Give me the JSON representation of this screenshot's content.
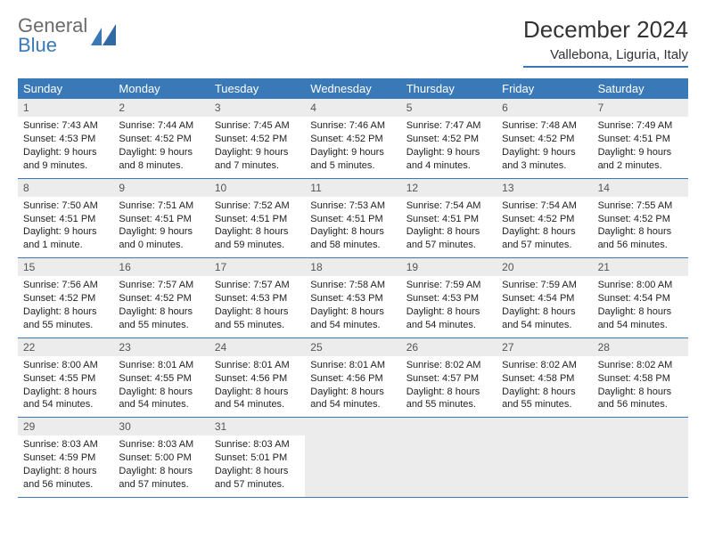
{
  "logo": {
    "text1": "General",
    "text2": "Blue"
  },
  "title": "December 2024",
  "location": "Vallebona, Liguria, Italy",
  "colors": {
    "header_bg": "#3a79b7",
    "header_text": "#ffffff",
    "daynum_bg": "#ececec",
    "daynum_text": "#555555",
    "body_text": "#222222",
    "rule": "#3a79b7"
  },
  "calendar": {
    "columns": [
      "Sunday",
      "Monday",
      "Tuesday",
      "Wednesday",
      "Thursday",
      "Friday",
      "Saturday"
    ],
    "weeks": [
      [
        {
          "day": "1",
          "sunrise": "7:43 AM",
          "sunset": "4:53 PM",
          "daylight": "9 hours and 9 minutes."
        },
        {
          "day": "2",
          "sunrise": "7:44 AM",
          "sunset": "4:52 PM",
          "daylight": "9 hours and 8 minutes."
        },
        {
          "day": "3",
          "sunrise": "7:45 AM",
          "sunset": "4:52 PM",
          "daylight": "9 hours and 7 minutes."
        },
        {
          "day": "4",
          "sunrise": "7:46 AM",
          "sunset": "4:52 PM",
          "daylight": "9 hours and 5 minutes."
        },
        {
          "day": "5",
          "sunrise": "7:47 AM",
          "sunset": "4:52 PM",
          "daylight": "9 hours and 4 minutes."
        },
        {
          "day": "6",
          "sunrise": "7:48 AM",
          "sunset": "4:52 PM",
          "daylight": "9 hours and 3 minutes."
        },
        {
          "day": "7",
          "sunrise": "7:49 AM",
          "sunset": "4:51 PM",
          "daylight": "9 hours and 2 minutes."
        }
      ],
      [
        {
          "day": "8",
          "sunrise": "7:50 AM",
          "sunset": "4:51 PM",
          "daylight": "9 hours and 1 minute."
        },
        {
          "day": "9",
          "sunrise": "7:51 AM",
          "sunset": "4:51 PM",
          "daylight": "9 hours and 0 minutes."
        },
        {
          "day": "10",
          "sunrise": "7:52 AM",
          "sunset": "4:51 PM",
          "daylight": "8 hours and 59 minutes."
        },
        {
          "day": "11",
          "sunrise": "7:53 AM",
          "sunset": "4:51 PM",
          "daylight": "8 hours and 58 minutes."
        },
        {
          "day": "12",
          "sunrise": "7:54 AM",
          "sunset": "4:51 PM",
          "daylight": "8 hours and 57 minutes."
        },
        {
          "day": "13",
          "sunrise": "7:54 AM",
          "sunset": "4:52 PM",
          "daylight": "8 hours and 57 minutes."
        },
        {
          "day": "14",
          "sunrise": "7:55 AM",
          "sunset": "4:52 PM",
          "daylight": "8 hours and 56 minutes."
        }
      ],
      [
        {
          "day": "15",
          "sunrise": "7:56 AM",
          "sunset": "4:52 PM",
          "daylight": "8 hours and 55 minutes."
        },
        {
          "day": "16",
          "sunrise": "7:57 AM",
          "sunset": "4:52 PM",
          "daylight": "8 hours and 55 minutes."
        },
        {
          "day": "17",
          "sunrise": "7:57 AM",
          "sunset": "4:53 PM",
          "daylight": "8 hours and 55 minutes."
        },
        {
          "day": "18",
          "sunrise": "7:58 AM",
          "sunset": "4:53 PM",
          "daylight": "8 hours and 54 minutes."
        },
        {
          "day": "19",
          "sunrise": "7:59 AM",
          "sunset": "4:53 PM",
          "daylight": "8 hours and 54 minutes."
        },
        {
          "day": "20",
          "sunrise": "7:59 AM",
          "sunset": "4:54 PM",
          "daylight": "8 hours and 54 minutes."
        },
        {
          "day": "21",
          "sunrise": "8:00 AM",
          "sunset": "4:54 PM",
          "daylight": "8 hours and 54 minutes."
        }
      ],
      [
        {
          "day": "22",
          "sunrise": "8:00 AM",
          "sunset": "4:55 PM",
          "daylight": "8 hours and 54 minutes."
        },
        {
          "day": "23",
          "sunrise": "8:01 AM",
          "sunset": "4:55 PM",
          "daylight": "8 hours and 54 minutes."
        },
        {
          "day": "24",
          "sunrise": "8:01 AM",
          "sunset": "4:56 PM",
          "daylight": "8 hours and 54 minutes."
        },
        {
          "day": "25",
          "sunrise": "8:01 AM",
          "sunset": "4:56 PM",
          "daylight": "8 hours and 54 minutes."
        },
        {
          "day": "26",
          "sunrise": "8:02 AM",
          "sunset": "4:57 PM",
          "daylight": "8 hours and 55 minutes."
        },
        {
          "day": "27",
          "sunrise": "8:02 AM",
          "sunset": "4:58 PM",
          "daylight": "8 hours and 55 minutes."
        },
        {
          "day": "28",
          "sunrise": "8:02 AM",
          "sunset": "4:58 PM",
          "daylight": "8 hours and 56 minutes."
        }
      ],
      [
        {
          "day": "29",
          "sunrise": "8:03 AM",
          "sunset": "4:59 PM",
          "daylight": "8 hours and 56 minutes."
        },
        {
          "day": "30",
          "sunrise": "8:03 AM",
          "sunset": "5:00 PM",
          "daylight": "8 hours and 57 minutes."
        },
        {
          "day": "31",
          "sunrise": "8:03 AM",
          "sunset": "5:01 PM",
          "daylight": "8 hours and 57 minutes."
        },
        null,
        null,
        null,
        null
      ]
    ]
  },
  "labels": {
    "sunrise": "Sunrise:",
    "sunset": "Sunset:",
    "daylight": "Daylight:"
  }
}
